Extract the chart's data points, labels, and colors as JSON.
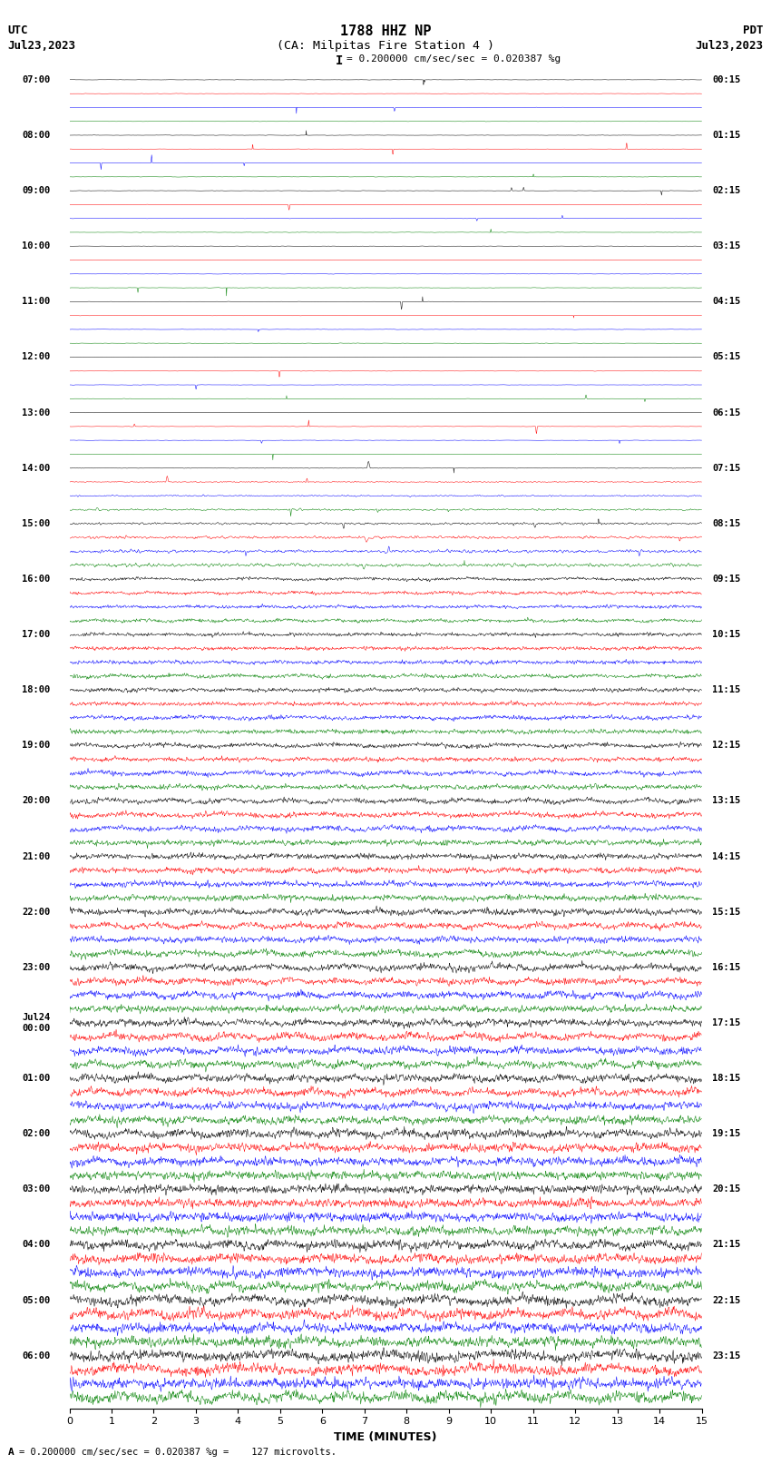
{
  "title_line1": "1788 HHZ NP",
  "title_line2": "(CA: Milpitas Fire Station 4 )",
  "scale_text": "= 0.200000 cm/sec/sec = 0.020387 %g",
  "left_label_top": "UTC",
  "left_label_date": "Jul23,2023",
  "right_label_top": "PDT",
  "right_label_date": "Jul23,2023",
  "xlabel": "TIME (MINUTES)",
  "footer": "= 0.200000 cm/sec/sec = 0.020387 %g =    127 microvolts.",
  "utc_times": [
    "07:00",
    "08:00",
    "09:00",
    "10:00",
    "11:00",
    "12:00",
    "13:00",
    "14:00",
    "15:00",
    "16:00",
    "17:00",
    "18:00",
    "19:00",
    "20:00",
    "21:00",
    "22:00",
    "23:00",
    "Jul24\n00:00",
    "01:00",
    "02:00",
    "03:00",
    "04:00",
    "05:00",
    "06:00"
  ],
  "pdt_times": [
    "00:15",
    "01:15",
    "02:15",
    "03:15",
    "04:15",
    "05:15",
    "06:15",
    "07:15",
    "08:15",
    "09:15",
    "10:15",
    "11:15",
    "12:15",
    "13:15",
    "14:15",
    "15:15",
    "16:15",
    "17:15",
    "18:15",
    "19:15",
    "20:15",
    "21:15",
    "22:15",
    "23:15"
  ],
  "trace_colors": [
    "black",
    "red",
    "blue",
    "green"
  ],
  "n_rows": 96,
  "n_samples": 1800,
  "x_ticks": [
    0,
    1,
    2,
    3,
    4,
    5,
    6,
    7,
    8,
    9,
    10,
    11,
    12,
    13,
    14,
    15
  ],
  "bg_color": "white",
  "noise_transition_row": 28,
  "noise_transition_row2": 36
}
